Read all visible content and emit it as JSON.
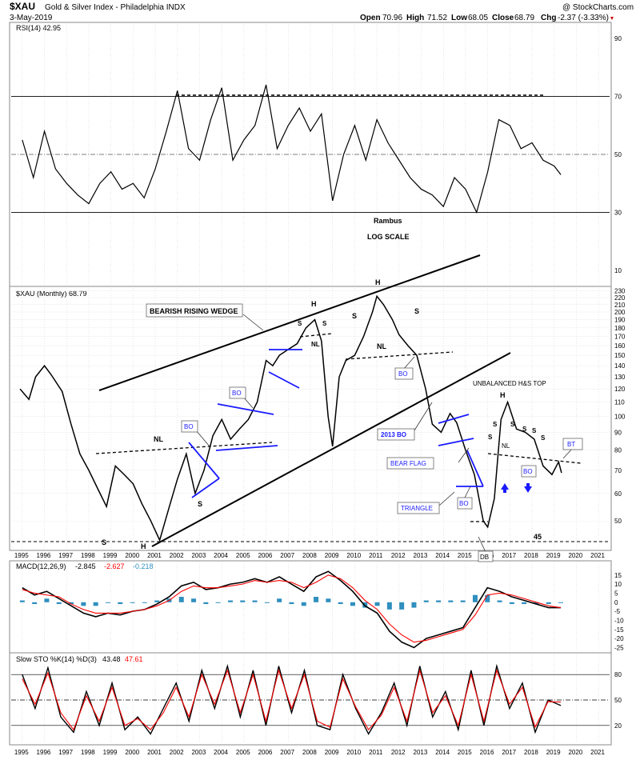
{
  "header": {
    "symbol": "$XAU",
    "name": "Gold & Silver Index - Philadelphia  INDX",
    "date": "3-May-2019",
    "copyright": "@ StockCharts.com",
    "ohlc": {
      "open_label": "Open",
      "open": "70.96",
      "high_label": "High",
      "high": "71.52",
      "low_label": "Low",
      "low": "68.05",
      "close_label": "Close",
      "close": "68.79",
      "chg_label": "Chg",
      "chg": "-2.37 (-3.33%)"
    }
  },
  "colors": {
    "price": "#000000",
    "trendline": "#000000",
    "pattern_blue": "#1a1aff",
    "macd_signal": "#ff0000",
    "histogram": "#2f8fbf",
    "stoch_d": "#ff0000",
    "grid": "#cccccc"
  },
  "annotations": {
    "author": "Rambus",
    "scale_note": "LOG SCALE",
    "bearish_wedge": "BEARISH RISING WEDGE",
    "unbalanced": "UNBALANCED H&S TOP",
    "bo1": "BO",
    "bo2": "BO",
    "bo3": "BO",
    "bo4": "BO",
    "bo5": "BO",
    "bo6": "BO",
    "bo_2013": "2013 BO",
    "bear_flag": "BEAR FLAG",
    "triangle": "TRIANGLE",
    "bt": "BT",
    "db": "DB",
    "nl1": "NL",
    "nl2": "NL",
    "nl3": "NL",
    "nl4": "NL",
    "level_45": "45",
    "h1": "H",
    "h2": "H",
    "h3": "H",
    "h4": "H",
    "s_left": "S",
    "s_mid": "S",
    "s_a": "S",
    "s_b": "S",
    "s_c": "S",
    "s_d": "S",
    "s_e": "S",
    "s_f": "S",
    "s_g": "S",
    "s_h": "S",
    "s_i": "S",
    "s_j": "S"
  },
  "chart_data": [
    {
      "type": "line",
      "panel": "RSI",
      "title": "RSI(14) 42.95",
      "ylim": [
        25,
        95
      ],
      "yticks": [
        90,
        70,
        50,
        30,
        10
      ],
      "reference_lines": [
        70,
        50,
        30
      ],
      "x": [
        1995.0,
        1995.5,
        1996.0,
        1996.5,
        1997.0,
        1997.5,
        1998.0,
        1998.5,
        1999.0,
        1999.5,
        2000.0,
        2000.5,
        2001.0,
        2001.5,
        2002.0,
        2002.5,
        2003.0,
        2003.5,
        2004.0,
        2004.5,
        2005.0,
        2005.5,
        2006.0,
        2006.5,
        2007.0,
        2007.5,
        2008.0,
        2008.5,
        2009.0,
        2009.5,
        2010.0,
        2010.5,
        2011.0,
        2011.5,
        2012.0,
        2012.5,
        2013.0,
        2013.5,
        2014.0,
        2014.5,
        2015.0,
        2015.5,
        2016.0,
        2016.5,
        2017.0,
        2017.5,
        2018.0,
        2018.5,
        2019.0,
        2019.3
      ],
      "values": [
        55,
        42,
        58,
        45,
        40,
        36,
        33,
        40,
        44,
        38,
        40,
        35,
        45,
        58,
        72,
        52,
        48,
        62,
        73,
        48,
        55,
        60,
        74,
        52,
        60,
        66,
        58,
        64,
        34,
        50,
        60,
        48,
        62,
        54,
        48,
        42,
        38,
        36,
        32,
        42,
        38,
        30,
        44,
        62,
        60,
        52,
        54,
        48,
        46,
        43
      ]
    },
    {
      "type": "line",
      "panel": "price",
      "title": "$XAU (Monthly) 68.79",
      "scale": "log",
      "ylim": [
        42,
        232
      ],
      "yticks": [
        230,
        220,
        210,
        200,
        190,
        180,
        170,
        160,
        150,
        140,
        130,
        120,
        110,
        100,
        90,
        80,
        70,
        60,
        50
      ],
      "x": [
        1994.9,
        1995.3,
        1995.6,
        1996.0,
        1996.3,
        1996.8,
        1997.2,
        1997.6,
        1998.0,
        1998.4,
        1998.8,
        1999.2,
        1999.6,
        2000.0,
        2000.4,
        2000.8,
        2001.2,
        2001.6,
        2002.0,
        2002.4,
        2002.8,
        2003.2,
        2003.6,
        2004.0,
        2004.4,
        2004.8,
        2005.2,
        2005.6,
        2006.0,
        2006.3,
        2006.6,
        2007.0,
        2007.4,
        2007.8,
        2008.2,
        2008.5,
        2008.8,
        2009.0,
        2009.3,
        2009.6,
        2010.0,
        2010.4,
        2010.8,
        2011.0,
        2011.3,
        2011.7,
        2012.0,
        2012.4,
        2012.8,
        2013.2,
        2013.5,
        2013.9,
        2014.3,
        2014.6,
        2015.0,
        2015.4,
        2015.8,
        2016.0,
        2016.3,
        2016.6,
        2016.9,
        2017.3,
        2017.7,
        2018.1,
        2018.5,
        2018.9,
        2019.2,
        2019.33
      ],
      "values": [
        120,
        112,
        130,
        140,
        132,
        118,
        95,
        78,
        70,
        62,
        55,
        72,
        68,
        64,
        56,
        50,
        44,
        54,
        66,
        78,
        60,
        70,
        88,
        98,
        86,
        92,
        98,
        110,
        145,
        140,
        150,
        156,
        162,
        180,
        190,
        165,
        100,
        82,
        130,
        145,
        150,
        170,
        200,
        222,
        210,
        190,
        172,
        160,
        150,
        120,
        95,
        90,
        102,
        96,
        80,
        68,
        50,
        48,
        58,
        98,
        110,
        92,
        90,
        86,
        72,
        68,
        74,
        68.79
      ]
    },
    {
      "type": "line",
      "panel": "MACD",
      "title": "MACD(12,26,9)",
      "values_label": [
        "-2.845",
        "-2.627",
        "-0.218"
      ],
      "ylim": [
        -27,
        18
      ],
      "yticks": [
        15,
        10,
        5,
        0,
        -5,
        -10,
        -15,
        -20,
        -25
      ],
      "series": [
        {
          "name": "MACD",
          "values": [
            8,
            4,
            6,
            2,
            -2,
            -6,
            -8,
            -6,
            -7,
            -5,
            -4,
            -1,
            3,
            9,
            11,
            7,
            8,
            10,
            11,
            13,
            11,
            14,
            10,
            6,
            14,
            17,
            12,
            6,
            -2,
            -6,
            -16,
            -22,
            -25,
            -20,
            -18,
            -16,
            -14,
            -3,
            8,
            6,
            3,
            1,
            -1,
            -3,
            -3
          ]
        },
        {
          "name": "Signal",
          "values": [
            7,
            5,
            4,
            3,
            -1,
            -4,
            -6,
            -6,
            -6,
            -5,
            -4,
            -2,
            1,
            6,
            9,
            8,
            8,
            9,
            10,
            12,
            11,
            12,
            11,
            8,
            11,
            15,
            13,
            8,
            1,
            -4,
            -12,
            -18,
            -22,
            -21,
            -19,
            -17,
            -15,
            -7,
            4,
            5,
            4,
            2,
            0,
            -2,
            -3
          ]
        }
      ],
      "histogram": [
        1,
        -1,
        2,
        -1,
        -1,
        -2,
        -2,
        0,
        -1,
        0,
        0,
        1,
        2,
        3,
        2,
        -1,
        0,
        1,
        1,
        1,
        0,
        2,
        -1,
        -2,
        3,
        2,
        -1,
        -2,
        -3,
        -2,
        -4,
        -4,
        -3,
        1,
        1,
        1,
        1,
        4,
        4,
        1,
        -1,
        -1,
        -1,
        -1,
        0
      ]
    },
    {
      "type": "line",
      "panel": "Slow STO",
      "title": "Slow STO %K(14) %D(3)",
      "values_label": [
        "43.48",
        "47.61"
      ],
      "ylim": [
        0,
        100
      ],
      "yticks": [
        80,
        50,
        20
      ],
      "series": [
        {
          "name": "%K",
          "values": [
            80,
            40,
            88,
            30,
            12,
            60,
            20,
            70,
            15,
            30,
            10,
            40,
            70,
            25,
            85,
            40,
            90,
            30,
            85,
            20,
            90,
            35,
            85,
            20,
            15,
            80,
            40,
            10,
            35,
            70,
            20,
            90,
            30,
            60,
            15,
            85,
            20,
            90,
            40,
            70,
            12,
            50,
            43.48
          ]
        },
        {
          "name": "%D",
          "values": [
            75,
            45,
            82,
            35,
            15,
            55,
            25,
            65,
            20,
            28,
            15,
            35,
            65,
            30,
            80,
            45,
            85,
            35,
            80,
            25,
            85,
            40,
            80,
            25,
            18,
            75,
            42,
            15,
            32,
            65,
            25,
            85,
            35,
            55,
            20,
            80,
            25,
            85,
            45,
            65,
            18,
            48,
            47.61
          ]
        }
      ]
    }
  ],
  "x_axis": {
    "years": [
      "1995",
      "1996",
      "1997",
      "1998",
      "1999",
      "2000",
      "2001",
      "2002",
      "2003",
      "2004",
      "2005",
      "2006",
      "2007",
      "2008",
      "2009",
      "2010",
      "2011",
      "2012",
      "2013",
      "2014",
      "2015",
      "2016",
      "2017",
      "2018",
      "2019",
      "2020",
      "2021"
    ]
  }
}
